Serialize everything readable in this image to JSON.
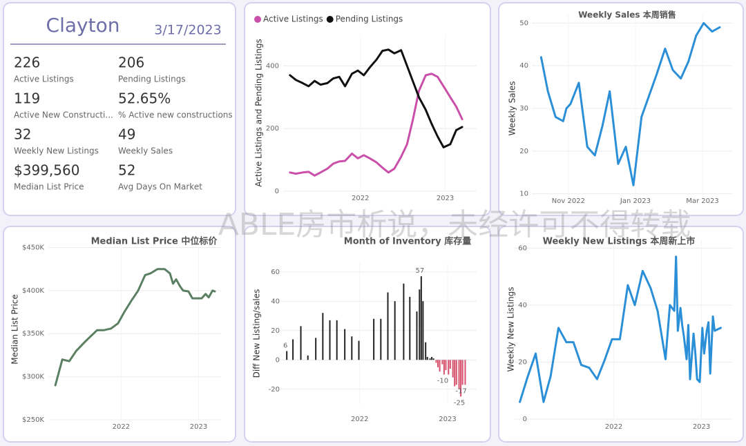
{
  "kpi_card": {
    "title": "Clayton",
    "date": "3/17/2023",
    "items": [
      {
        "value": "226",
        "label": "Active Listings"
      },
      {
        "value": "206",
        "label": "Pending Listings"
      },
      {
        "value": "119",
        "label": "Active New Constructi..."
      },
      {
        "value": "52.65%",
        "label": "% Active new constructions"
      },
      {
        "value": "32",
        "label": "Weekly New Listings"
      },
      {
        "value": "49",
        "label": "Weekly Sales"
      },
      {
        "value": "$399,560",
        "label": "Median List Price"
      },
      {
        "value": "52",
        "label": "Avg Days On Market"
      }
    ]
  },
  "watermark": "ABLE房市析说，未经许可不得转载",
  "chart_data": [
    {
      "type": "line",
      "ylabel": "Active Listings and Pending Listings",
      "legend": "top-left",
      "grid": true,
      "x": [
        2021.17,
        2021.24,
        2021.32,
        2021.39,
        2021.46,
        2021.53,
        2021.61,
        2021.68,
        2021.75,
        2021.82,
        2021.9,
        2021.97,
        2022.04,
        2022.11,
        2022.19,
        2022.26,
        2022.33,
        2022.4,
        2022.48,
        2022.55,
        2022.62,
        2022.69,
        2022.77,
        2022.84,
        2022.91,
        2022.98,
        2023.06,
        2023.13,
        2023.2
      ],
      "series": [
        {
          "name": "Active Listings",
          "color": "#c94fa8",
          "values": [
            60,
            56,
            60,
            62,
            50,
            60,
            72,
            88,
            95,
            97,
            120,
            105,
            115,
            105,
            92,
            75,
            60,
            72,
            110,
            150,
            230,
            320,
            370,
            375,
            365,
            335,
            300,
            270,
            230
          ]
        },
        {
          "name": "Pending Listings",
          "color": "#111111",
          "values": [
            370,
            355,
            345,
            335,
            352,
            340,
            345,
            360,
            365,
            335,
            375,
            385,
            370,
            395,
            420,
            448,
            452,
            440,
            450,
            400,
            350,
            300,
            260,
            215,
            175,
            140,
            150,
            195,
            205
          ]
        }
      ],
      "xlim": [
        2021.09,
        2023.37
      ],
      "xticks": [
        2022,
        2023
      ],
      "ylim": [
        0,
        500
      ],
      "yticks": [
        0,
        200,
        400
      ]
    },
    {
      "type": "line",
      "title": "Weekly Sales 本周销售",
      "ylabel": "Weekly Sales",
      "grid": true,
      "color": "#2b8fd8",
      "x": [
        2022.765,
        2022.782,
        2022.801,
        2022.82,
        2022.828,
        2022.838,
        2022.859,
        2022.88,
        2022.899,
        2022.918,
        2022.936,
        2022.957,
        2022.976,
        2022.995,
        2023.015,
        2023.034,
        2023.053,
        2023.074,
        2023.093,
        2023.113,
        2023.132,
        2023.151,
        2023.17,
        2023.191,
        2023.21
      ],
      "values": [
        42,
        34,
        28,
        27,
        30,
        31,
        36,
        21,
        19,
        26,
        34,
        17,
        21,
        12,
        28,
        33,
        38,
        44,
        39,
        37,
        41,
        47,
        50,
        48,
        49
      ],
      "xlim": [
        2022.742,
        2023.241
      ],
      "xticks": [
        {
          "value": 2022.833,
          "label": "Nov 2022"
        },
        {
          "value": 2023,
          "label": "Jan 2023"
        },
        {
          "value": 2023.167,
          "label": "Mar 2023"
        }
      ],
      "ylim": [
        8,
        52
      ],
      "yticks": [
        10,
        20,
        30,
        40,
        50
      ]
    },
    {
      "type": "line",
      "title": "Median List Price  中位标价",
      "ylabel": "Median List Price",
      "grid": true,
      "color": "#5b7f63",
      "x": [
        2021.15,
        2021.24,
        2021.33,
        2021.42,
        2021.55,
        2021.69,
        2021.78,
        2021.87,
        2021.96,
        2022.04,
        2022.13,
        2022.22,
        2022.31,
        2022.38,
        2022.47,
        2022.56,
        2022.63,
        2022.67,
        2022.71,
        2022.76,
        2022.8,
        2022.87,
        2022.92,
        2022.98,
        2023.04,
        2023.09,
        2023.13,
        2023.18,
        2023.21
      ],
      "values": [
        290000,
        320000,
        318000,
        330000,
        342000,
        354000,
        354000,
        356000,
        362000,
        375000,
        388000,
        400000,
        418000,
        420000,
        425000,
        425000,
        420000,
        408000,
        413000,
        405000,
        400000,
        399000,
        391000,
        391000,
        391000,
        396000,
        392000,
        400000,
        399000
      ],
      "xlim": [
        2021.06,
        2023.29
      ],
      "xticks": [
        2022,
        2023
      ],
      "ylim": [
        250000,
        460000
      ],
      "yticks": [
        {
          "value": 250000,
          "label": "$250K"
        },
        {
          "value": 300000,
          "label": "$300K"
        },
        {
          "value": 350000,
          "label": "$350K"
        },
        {
          "value": 400000,
          "label": "$400K"
        },
        {
          "value": 450000,
          "label": "$450K"
        }
      ]
    },
    {
      "type": "bar",
      "title": "Month of Inventory 库存量",
      "ylabel": "Diff New Listing/sales",
      "grid": true,
      "color": "#222222",
      "negative_color": "#d6506b",
      "x": [
        2021.17,
        2021.24,
        2021.33,
        2021.41,
        2021.5,
        2021.58,
        2021.66,
        2021.74,
        2021.83,
        2021.91,
        2021.99,
        2022.16,
        2022.24,
        2022.32,
        2022.4,
        2022.5,
        2022.57,
        2022.65,
        2022.68,
        2022.7,
        2022.72,
        2022.75,
        2022.77,
        2022.8,
        2022.82,
        2022.84,
        2022.87,
        2022.89,
        2022.91,
        2022.94,
        2022.96,
        2022.98,
        2023.01,
        2023.03,
        2023.06,
        2023.08,
        2023.1,
        2023.13,
        2023.15,
        2023.17,
        2023.2
      ],
      "values": [
        6,
        14,
        23,
        3,
        15,
        32,
        27,
        27,
        21,
        16,
        13,
        28,
        28,
        46,
        40,
        52,
        43,
        33,
        48,
        57,
        40,
        12,
        2,
        1,
        2,
        1,
        -2,
        -5,
        -8,
        -3,
        -10,
        -7,
        -10,
        -6,
        -12,
        -18,
        -17,
        -20,
        -25,
        -17,
        -17
      ],
      "value_labels": [
        "6",
        null,
        null,
        null,
        null,
        null,
        null,
        null,
        null,
        null,
        null,
        null,
        null,
        null,
        null,
        null,
        null,
        null,
        null,
        "57",
        null,
        null,
        null,
        null,
        null,
        null,
        null,
        null,
        null,
        null,
        "-10",
        null,
        null,
        null,
        null,
        null,
        null,
        null,
        "-25",
        "-17",
        null
      ],
      "xlim": [
        2021.09,
        2023.33
      ],
      "xticks": [
        2022,
        2023
      ],
      "ylim": [
        -30,
        66
      ],
      "yticks": [
        -20,
        0,
        20,
        40,
        60
      ]
    },
    {
      "type": "line",
      "title": "Weekly New Listings  本周新上市",
      "ylabel": "Weekly New Listings",
      "grid": true,
      "color": "#2b8fd8",
      "x": [
        2020.93,
        2021.02,
        2021.11,
        2021.2,
        2021.28,
        2021.37,
        2021.46,
        2021.54,
        2021.63,
        2021.72,
        2021.81,
        2021.9,
        2021.98,
        2022.07,
        2022.16,
        2022.24,
        2022.33,
        2022.42,
        2022.5,
        2022.59,
        2022.64,
        2022.69,
        2022.71,
        2022.73,
        2022.76,
        2022.78,
        2022.8,
        2022.83,
        2022.85,
        2022.87,
        2022.91,
        2022.93,
        2022.95,
        2022.98,
        2023.01,
        2023.03,
        2023.06,
        2023.08,
        2023.1,
        2023.13,
        2023.15,
        2023.22
      ],
      "values": [
        6,
        15,
        23,
        6,
        15,
        32,
        27,
        27,
        19,
        18,
        14,
        21,
        28,
        28,
        47,
        40,
        52,
        46,
        38,
        21,
        40,
        38,
        57,
        31,
        39,
        33,
        29,
        21,
        33,
        14,
        30,
        23,
        14,
        13,
        32,
        23,
        31,
        34,
        16,
        36,
        31,
        32
      ],
      "xlim": [
        2020.87,
        2023.35
      ],
      "xticks": [
        2022,
        2023
      ],
      "ylim": [
        0,
        63
      ],
      "yticks": [
        0,
        20,
        40,
        60
      ]
    }
  ]
}
